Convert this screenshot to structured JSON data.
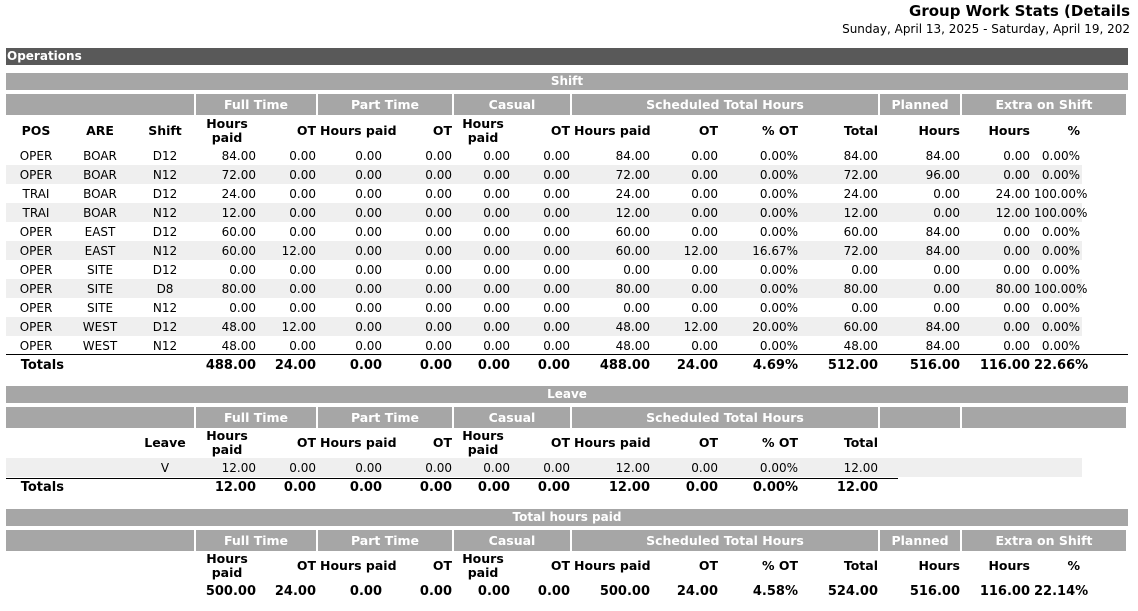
{
  "header": {
    "title": "Group Work Stats (Details",
    "date_range": "Sunday, April 13, 2025  -  Saturday, April 19, 202"
  },
  "operations_label": "Operations",
  "shift": {
    "section_label": "Shift",
    "groups": [
      "Full Time",
      "Part Time",
      "Casual",
      "Scheduled Total Hours",
      "Planned",
      "Extra on Shift"
    ],
    "columns": [
      "POS",
      "ARE",
      "Shift",
      "Hours paid",
      "OT",
      "Hours paid",
      "OT",
      "Hours paid",
      "OT",
      "Hours paid",
      "OT",
      "% OT",
      "Total",
      "Hours",
      "Hours",
      "%"
    ],
    "rows": [
      [
        "OPER",
        "BOAR",
        "D12",
        "84.00",
        "0.00",
        "0.00",
        "0.00",
        "0.00",
        "0.00",
        "84.00",
        "0.00",
        "0.00%",
        "84.00",
        "84.00",
        "0.00",
        "0.00%"
      ],
      [
        "OPER",
        "BOAR",
        "N12",
        "72.00",
        "0.00",
        "0.00",
        "0.00",
        "0.00",
        "0.00",
        "72.00",
        "0.00",
        "0.00%",
        "72.00",
        "96.00",
        "0.00",
        "0.00%"
      ],
      [
        "TRAI",
        "BOAR",
        "D12",
        "24.00",
        "0.00",
        "0.00",
        "0.00",
        "0.00",
        "0.00",
        "24.00",
        "0.00",
        "0.00%",
        "24.00",
        "0.00",
        "24.00",
        "100.00%"
      ],
      [
        "TRAI",
        "BOAR",
        "N12",
        "12.00",
        "0.00",
        "0.00",
        "0.00",
        "0.00",
        "0.00",
        "12.00",
        "0.00",
        "0.00%",
        "12.00",
        "0.00",
        "12.00",
        "100.00%"
      ],
      [
        "OPER",
        "EAST",
        "D12",
        "60.00",
        "0.00",
        "0.00",
        "0.00",
        "0.00",
        "0.00",
        "60.00",
        "0.00",
        "0.00%",
        "60.00",
        "84.00",
        "0.00",
        "0.00%"
      ],
      [
        "OPER",
        "EAST",
        "N12",
        "60.00",
        "12.00",
        "0.00",
        "0.00",
        "0.00",
        "0.00",
        "60.00",
        "12.00",
        "16.67%",
        "72.00",
        "84.00",
        "0.00",
        "0.00%"
      ],
      [
        "OPER",
        "SITE",
        "D12",
        "0.00",
        "0.00",
        "0.00",
        "0.00",
        "0.00",
        "0.00",
        "0.00",
        "0.00",
        "0.00%",
        "0.00",
        "0.00",
        "0.00",
        "0.00%"
      ],
      [
        "OPER",
        "SITE",
        "D8",
        "80.00",
        "0.00",
        "0.00",
        "0.00",
        "0.00",
        "0.00",
        "80.00",
        "0.00",
        "0.00%",
        "80.00",
        "0.00",
        "80.00",
        "100.00%"
      ],
      [
        "OPER",
        "SITE",
        "N12",
        "0.00",
        "0.00",
        "0.00",
        "0.00",
        "0.00",
        "0.00",
        "0.00",
        "0.00",
        "0.00%",
        "0.00",
        "0.00",
        "0.00",
        "0.00%"
      ],
      [
        "OPER",
        "WEST",
        "D12",
        "48.00",
        "12.00",
        "0.00",
        "0.00",
        "0.00",
        "0.00",
        "48.00",
        "12.00",
        "20.00%",
        "60.00",
        "84.00",
        "0.00",
        "0.00%"
      ],
      [
        "OPER",
        "WEST",
        "N12",
        "48.00",
        "0.00",
        "0.00",
        "0.00",
        "0.00",
        "0.00",
        "48.00",
        "0.00",
        "0.00%",
        "48.00",
        "84.00",
        "0.00",
        "0.00%"
      ]
    ],
    "totals": [
      "Totals",
      "",
      "",
      "488.00",
      "24.00",
      "0.00",
      "0.00",
      "0.00",
      "0.00",
      "488.00",
      "24.00",
      "4.69%",
      "512.00",
      "516.00",
      "116.00",
      "22.66%"
    ]
  },
  "leave": {
    "section_label": "Leave",
    "groups": [
      "Full Time",
      "Part Time",
      "Casual",
      "Scheduled Total Hours"
    ],
    "columns": [
      "",
      "",
      "Leave",
      "Hours paid",
      "OT",
      "Hours paid",
      "OT",
      "Hours paid",
      "OT",
      "Hours paid",
      "OT",
      "% OT",
      "Total",
      "",
      "",
      ""
    ],
    "rows": [
      [
        "",
        "",
        "V",
        "12.00",
        "0.00",
        "0.00",
        "0.00",
        "0.00",
        "0.00",
        "12.00",
        "0.00",
        "0.00%",
        "12.00",
        "",
        "",
        ""
      ]
    ],
    "totals": [
      "Totals",
      "",
      "",
      "12.00",
      "0.00",
      "0.00",
      "0.00",
      "0.00",
      "0.00",
      "12.00",
      "0.00",
      "0.00%",
      "12.00",
      "",
      "",
      ""
    ]
  },
  "total_hours_paid": {
    "section_label": "Total hours paid",
    "groups": [
      "Full Time",
      "Part Time",
      "Casual",
      "Scheduled Total Hours",
      "Planned",
      "Extra on Shift"
    ],
    "columns": [
      "",
      "",
      "",
      "Hours paid",
      "OT",
      "Hours paid",
      "OT",
      "Hours paid",
      "OT",
      "Hours paid",
      "OT",
      "% OT",
      "Total",
      "Hours",
      "Hours",
      "%"
    ],
    "totals": [
      "",
      "",
      "",
      "500.00",
      "24.00",
      "0.00",
      "0.00",
      "0.00",
      "0.00",
      "500.00",
      "24.00",
      "4.58%",
      "524.00",
      "516.00",
      "116.00",
      "22.14%"
    ]
  }
}
